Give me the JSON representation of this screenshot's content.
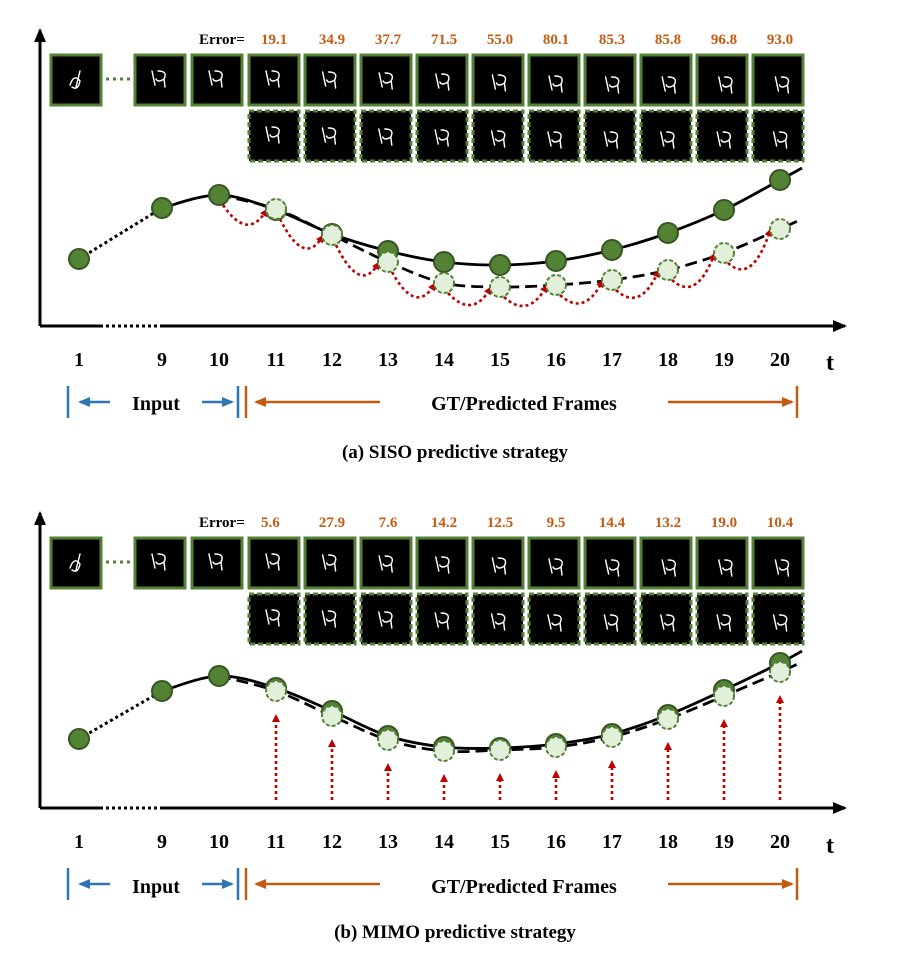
{
  "colors": {
    "error_value": "#c55a11",
    "frame_border": "#548235",
    "gt_node": "#548235",
    "pred_node_fill": "#e2efda",
    "arrow_red": "#c00000",
    "input_blue": "#2e75b6",
    "gt_orange": "#c55a11",
    "axis": "#000000"
  },
  "time_labels": [
    "1",
    "9",
    "10",
    "11",
    "12",
    "13",
    "14",
    "15",
    "16",
    "17",
    "18",
    "19",
    "20"
  ],
  "axis_var": "t",
  "input_label": "Input",
  "output_label": "GT/Predicted Frames",
  "panels": [
    {
      "id": "siso",
      "caption": "(a) SISO predictive strategy",
      "error_label": "Error=",
      "errors": [
        "19.1",
        "34.9",
        "37.7",
        "71.5",
        "55.0",
        "80.1",
        "85.3",
        "85.8",
        "96.8",
        "93.0"
      ],
      "gt_curve_icon": "digit-frame-icon",
      "arrow_style": "recursive"
    },
    {
      "id": "mimo",
      "caption": "(b) MIMO predictive strategy",
      "error_label": "Error=",
      "errors": [
        "5.6",
        "27.9",
        "7.6",
        "14.2",
        "12.5",
        "9.5",
        "14.4",
        "13.2",
        "19.0",
        "10.4"
      ],
      "gt_curve_icon": "digit-frame-icon",
      "arrow_style": "parallel"
    }
  ]
}
